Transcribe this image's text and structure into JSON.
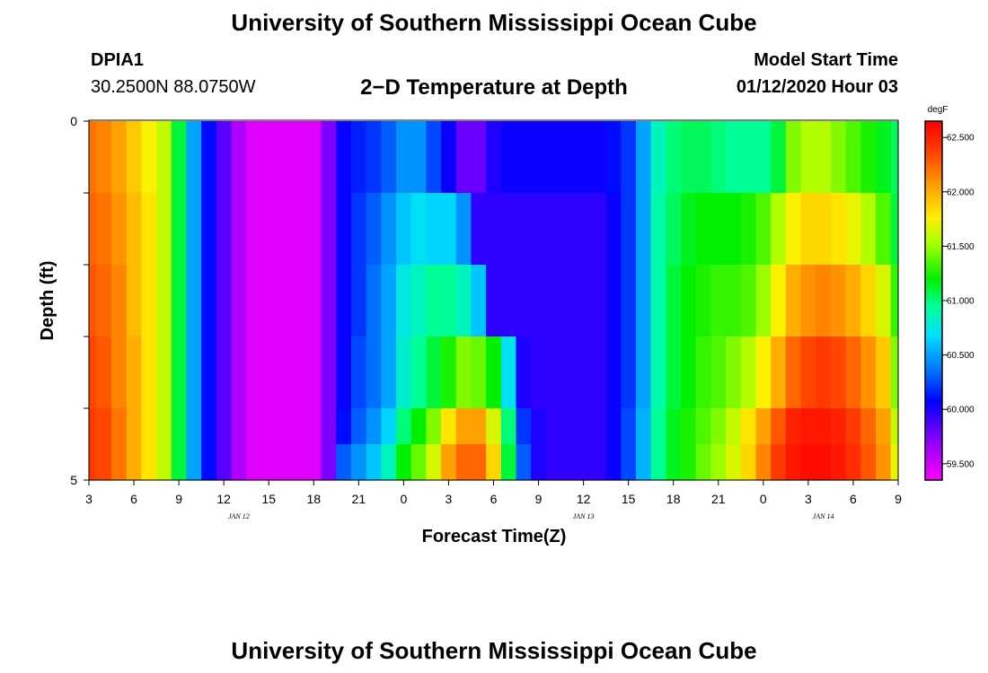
{
  "page": {
    "title": "University of Southern Mississippi Ocean Cube",
    "footer_title": "University of Southern Mississippi Ocean Cube",
    "station_id": "DPIA1",
    "coordinates": "30.2500N 88.0750W",
    "plot_title": "2−D Temperature at Depth",
    "model_start_label": "Model Start Time",
    "model_start_value": "01/12/2020 Hour 03"
  },
  "chart_data": {
    "type": "heatmap",
    "title": "2−D Temperature at Depth",
    "xlabel": "Forecast Time(Z)",
    "ylabel": "Depth (ft)",
    "x_ticks": [
      "3",
      "6",
      "9",
      "12",
      "15",
      "18",
      "21",
      "0",
      "3",
      "6",
      "9",
      "12",
      "15",
      "18",
      "21",
      "0",
      "3",
      "6",
      "9"
    ],
    "date_labels": [
      {
        "label": "JAN 12",
        "hour_index": 10
      },
      {
        "label": "JAN 13",
        "hour_index": 33
      },
      {
        "label": "JAN 14",
        "hour_index": 49
      }
    ],
    "y_ticks": [
      "0",
      "5"
    ],
    "y_range": [
      0,
      5
    ],
    "colorbar": {
      "unit": "degF",
      "min": 59.35,
      "max": 62.65,
      "ticks": [
        "62.500",
        "62.000",
        "61.500",
        "61.000",
        "60.500",
        "60.000",
        "59.500"
      ],
      "tick_values": [
        62.5,
        62.0,
        61.5,
        61.0,
        60.5,
        60.0,
        59.5
      ]
    },
    "rows_depth_ft": [
      0.25,
      0.75,
      1.25,
      1.75,
      2.25,
      2.75,
      3.25,
      3.75,
      4.25,
      4.75
    ],
    "time_hours": [
      3,
      4,
      5,
      6,
      7,
      8,
      9,
      10,
      11,
      12,
      13,
      14,
      15,
      16,
      17,
      18,
      19,
      20,
      21,
      22,
      23,
      0,
      1,
      2,
      3,
      4,
      5,
      6,
      7,
      8,
      9,
      10,
      11,
      12,
      13,
      14,
      15,
      16,
      17,
      18,
      19,
      20,
      21,
      22,
      23,
      0,
      1,
      2,
      3,
      4,
      5,
      6,
      7,
      8,
      9
    ],
    "values": [
      [
        62.2,
        62.15,
        62.05,
        61.9,
        61.75,
        61.6,
        61.1,
        60.5,
        60.1,
        59.85,
        59.6,
        59.45,
        59.45,
        59.45,
        59.45,
        59.45,
        59.75,
        60.05,
        60.15,
        60.2,
        60.3,
        60.45,
        60.45,
        60.25,
        60.05,
        59.8,
        59.8,
        60.0,
        60.05,
        60.05,
        60.05,
        60.05,
        60.05,
        60.05,
        60.05,
        60.1,
        60.2,
        60.5,
        60.85,
        61.0,
        61.05,
        61.05,
        61.0,
        60.95,
        60.95,
        60.95,
        61.1,
        61.45,
        61.55,
        61.55,
        61.45,
        61.35,
        61.25,
        61.15,
        61.05
      ],
      [
        62.2,
        62.15,
        62.05,
        61.9,
        61.75,
        61.6,
        61.1,
        60.5,
        60.1,
        59.85,
        59.6,
        59.45,
        59.45,
        59.45,
        59.45,
        59.45,
        59.75,
        60.05,
        60.15,
        60.2,
        60.3,
        60.45,
        60.45,
        60.25,
        60.05,
        59.8,
        59.8,
        60.0,
        60.05,
        60.05,
        60.05,
        60.05,
        60.05,
        60.05,
        60.05,
        60.1,
        60.2,
        60.5,
        60.85,
        61.0,
        61.05,
        61.05,
        61.0,
        60.95,
        60.95,
        60.95,
        61.1,
        61.45,
        61.55,
        61.55,
        61.45,
        61.35,
        61.25,
        61.15,
        61.05
      ],
      [
        62.25,
        62.2,
        62.1,
        61.95,
        61.8,
        61.6,
        61.1,
        60.5,
        60.1,
        59.85,
        59.6,
        59.45,
        59.45,
        59.45,
        59.45,
        59.45,
        59.75,
        60.05,
        60.2,
        60.3,
        60.45,
        60.6,
        60.7,
        60.65,
        60.65,
        60.45,
        59.95,
        59.95,
        59.95,
        59.95,
        59.95,
        59.95,
        59.95,
        59.95,
        59.95,
        60.05,
        60.2,
        60.5,
        60.9,
        61.05,
        61.15,
        61.2,
        61.2,
        61.2,
        61.25,
        61.35,
        61.55,
        61.75,
        61.85,
        61.85,
        61.8,
        61.7,
        61.55,
        61.35,
        61.1
      ],
      [
        62.25,
        62.2,
        62.1,
        61.95,
        61.8,
        61.6,
        61.1,
        60.5,
        60.1,
        59.85,
        59.6,
        59.45,
        59.45,
        59.45,
        59.45,
        59.45,
        59.75,
        60.05,
        60.2,
        60.3,
        60.45,
        60.6,
        60.7,
        60.65,
        60.65,
        60.45,
        59.95,
        59.95,
        59.95,
        59.95,
        59.95,
        59.95,
        59.95,
        59.95,
        59.95,
        60.05,
        60.2,
        60.5,
        60.9,
        61.05,
        61.15,
        61.2,
        61.2,
        61.2,
        61.25,
        61.35,
        61.55,
        61.75,
        61.85,
        61.85,
        61.8,
        61.7,
        61.55,
        61.35,
        61.1
      ],
      [
        62.3,
        62.25,
        62.15,
        61.95,
        61.8,
        61.6,
        61.1,
        60.5,
        60.1,
        59.85,
        59.6,
        59.45,
        59.45,
        59.45,
        59.45,
        59.45,
        59.75,
        60.05,
        60.2,
        60.35,
        60.5,
        60.75,
        60.85,
        60.95,
        60.95,
        60.85,
        60.6,
        59.95,
        59.95,
        59.95,
        59.95,
        59.95,
        59.95,
        59.95,
        59.95,
        60.05,
        60.2,
        60.5,
        60.9,
        61.1,
        61.2,
        61.25,
        61.3,
        61.3,
        61.35,
        61.5,
        61.75,
        62.0,
        62.1,
        62.15,
        62.1,
        62.0,
        61.85,
        61.65,
        61.3
      ],
      [
        62.3,
        62.25,
        62.15,
        61.95,
        61.8,
        61.6,
        61.1,
        60.5,
        60.1,
        59.85,
        59.6,
        59.45,
        59.45,
        59.45,
        59.45,
        59.45,
        59.75,
        60.05,
        60.2,
        60.35,
        60.5,
        60.75,
        60.85,
        60.95,
        60.95,
        60.85,
        60.6,
        59.95,
        59.95,
        59.95,
        59.95,
        59.95,
        59.95,
        59.95,
        59.95,
        60.05,
        60.2,
        60.5,
        60.9,
        61.1,
        61.2,
        61.25,
        61.3,
        61.3,
        61.35,
        61.5,
        61.75,
        62.0,
        62.1,
        62.15,
        62.1,
        62.0,
        61.85,
        61.65,
        61.3
      ],
      [
        62.35,
        62.3,
        62.15,
        62.0,
        61.8,
        61.6,
        61.1,
        60.5,
        60.1,
        59.85,
        59.6,
        59.45,
        59.45,
        59.45,
        59.45,
        59.45,
        59.75,
        60.05,
        60.25,
        60.35,
        60.5,
        60.8,
        60.95,
        61.1,
        61.25,
        61.45,
        61.4,
        61.2,
        60.7,
        60.0,
        59.95,
        59.95,
        59.95,
        59.95,
        59.95,
        60.05,
        60.2,
        60.5,
        60.9,
        61.1,
        61.2,
        61.3,
        61.35,
        61.45,
        61.55,
        61.75,
        62.0,
        62.25,
        62.35,
        62.4,
        62.35,
        62.25,
        62.1,
        61.9,
        61.45
      ],
      [
        62.35,
        62.3,
        62.15,
        62.0,
        61.8,
        61.6,
        61.1,
        60.5,
        60.1,
        59.85,
        59.6,
        59.45,
        59.45,
        59.45,
        59.45,
        59.45,
        59.75,
        60.05,
        60.25,
        60.35,
        60.5,
        60.8,
        60.95,
        61.1,
        61.25,
        61.45,
        61.4,
        61.2,
        60.7,
        60.0,
        59.95,
        59.95,
        59.95,
        59.95,
        59.95,
        60.05,
        60.2,
        60.5,
        60.9,
        61.1,
        61.2,
        61.3,
        61.35,
        61.45,
        61.55,
        61.75,
        62.0,
        62.25,
        62.35,
        62.4,
        62.35,
        62.25,
        62.1,
        61.9,
        61.45
      ],
      [
        62.4,
        62.35,
        62.2,
        62.0,
        61.8,
        61.6,
        61.1,
        60.5,
        60.1,
        59.85,
        59.6,
        59.45,
        59.45,
        59.45,
        59.45,
        59.45,
        59.75,
        60.1,
        60.3,
        60.45,
        60.65,
        61.0,
        61.2,
        61.45,
        61.8,
        62.05,
        62.05,
        61.65,
        61.0,
        60.2,
        60.0,
        59.95,
        59.95,
        59.95,
        59.95,
        60.05,
        60.25,
        60.55,
        60.95,
        61.15,
        61.25,
        61.35,
        61.45,
        61.6,
        61.8,
        62.05,
        62.3,
        62.5,
        62.55,
        62.55,
        62.5,
        62.4,
        62.25,
        62.05,
        61.6
      ],
      [
        62.4,
        62.35,
        62.2,
        62.0,
        61.8,
        61.6,
        61.1,
        60.5,
        60.1,
        59.85,
        59.6,
        59.45,
        59.45,
        59.45,
        59.45,
        59.45,
        59.75,
        60.3,
        60.45,
        60.6,
        60.85,
        61.2,
        61.4,
        61.65,
        62.05,
        62.25,
        62.25,
        61.85,
        61.1,
        60.3,
        60.0,
        59.95,
        59.95,
        59.95,
        59.95,
        60.05,
        60.25,
        60.55,
        60.95,
        61.15,
        61.25,
        61.4,
        61.5,
        61.65,
        61.85,
        62.15,
        62.4,
        62.55,
        62.6,
        62.6,
        62.55,
        62.45,
        62.3,
        62.1,
        61.7
      ]
    ]
  }
}
